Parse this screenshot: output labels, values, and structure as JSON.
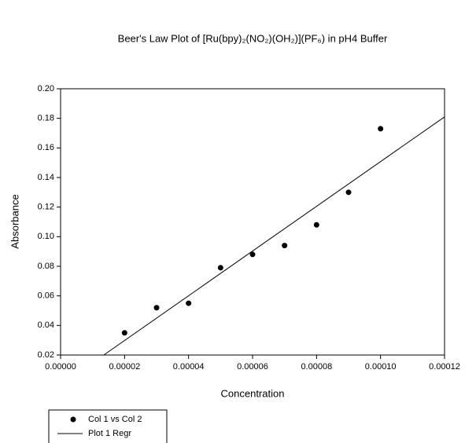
{
  "chart_data": {
    "type": "scatter",
    "title": "Beer's Law Plot of [Ru(bpy)₂(NO₂)(OH₂)](PF₆) in pH4 Buffer",
    "x_label": "Concentration",
    "y_label": "Absorbance",
    "series": [
      {
        "name": "Col 1 vs Col 2",
        "type": "scatter",
        "color": "#000000",
        "x": [
          2e-05,
          3e-05,
          4e-05,
          5e-05,
          6e-05,
          7e-05,
          8e-05,
          9e-05,
          0.0001
        ],
        "values": [
          0.035,
          0.052,
          0.055,
          0.079,
          0.088,
          0.094,
          0.108,
          0.13,
          0.173
        ]
      },
      {
        "name": "Plot 1 Regr",
        "type": "line",
        "color": "#000000",
        "x": [
          1.35e-05,
          0.00012
        ],
        "values": [
          0.02,
          0.181
        ]
      }
    ],
    "xlim": [
      0,
      0.00012
    ],
    "ylim": [
      0.02,
      0.2
    ],
    "xticks": [
      {
        "value": 0,
        "label": "0.00000"
      },
      {
        "value": 2e-05,
        "label": "0.00002"
      },
      {
        "value": 4e-05,
        "label": "0.00004"
      },
      {
        "value": 6e-05,
        "label": "0.00006"
      },
      {
        "value": 8e-05,
        "label": "0.00008"
      },
      {
        "value": 0.0001,
        "label": "0.00010"
      },
      {
        "value": 0.00012,
        "label": "0.00012"
      }
    ],
    "yticks": [
      0.02,
      0.04,
      0.06,
      0.08,
      {
        "value": 0.1,
        "label": "0.10"
      },
      0.12,
      0.14,
      0.16,
      0.18,
      {
        "value": 0.2,
        "label": "0.20"
      }
    ],
    "grid": false,
    "legend": "bottom-left"
  }
}
